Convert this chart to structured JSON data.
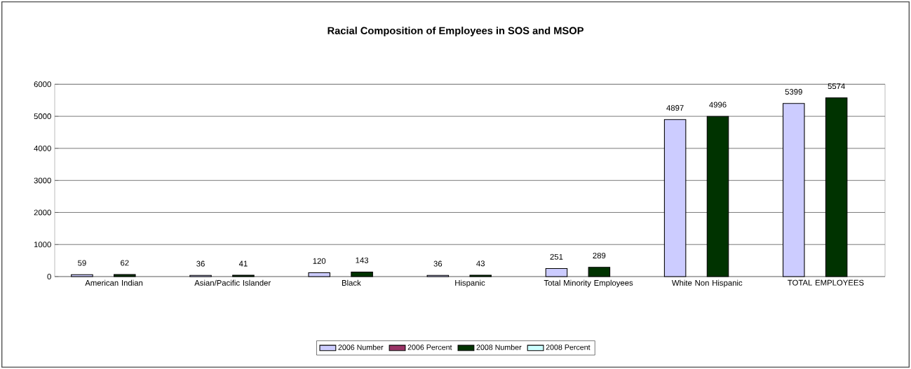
{
  "chart_data": {
    "type": "bar",
    "title": "Racial Composition of Employees in SOS and MSOP",
    "categories": [
      "American Indian",
      "Asian/Pacific Islander",
      "Black",
      "Hispanic",
      "Total Minority Employees",
      "White Non Hispanic",
      "TOTAL EMPLOYEES"
    ],
    "series": [
      {
        "name": "2006 Number",
        "color": "#ccccff",
        "values": [
          59,
          36,
          120,
          36,
          251,
          4897,
          5399
        ]
      },
      {
        "name": "2006 Percent",
        "color": "#993366",
        "values": [
          null,
          null,
          null,
          null,
          null,
          null,
          null
        ]
      },
      {
        "name": "2008 Number",
        "color": "#003300",
        "values": [
          62,
          41,
          143,
          43,
          289,
          4996,
          5574
        ]
      },
      {
        "name": "2008 Percent",
        "color": "#ccffff",
        "values": [
          null,
          null,
          null,
          null,
          null,
          null,
          null
        ]
      }
    ],
    "ylim": [
      0,
      6000
    ],
    "yticks": [
      0,
      1000,
      2000,
      3000,
      4000,
      5000,
      6000
    ],
    "grid": "y",
    "legend": "bottom",
    "data_labels": true
  }
}
